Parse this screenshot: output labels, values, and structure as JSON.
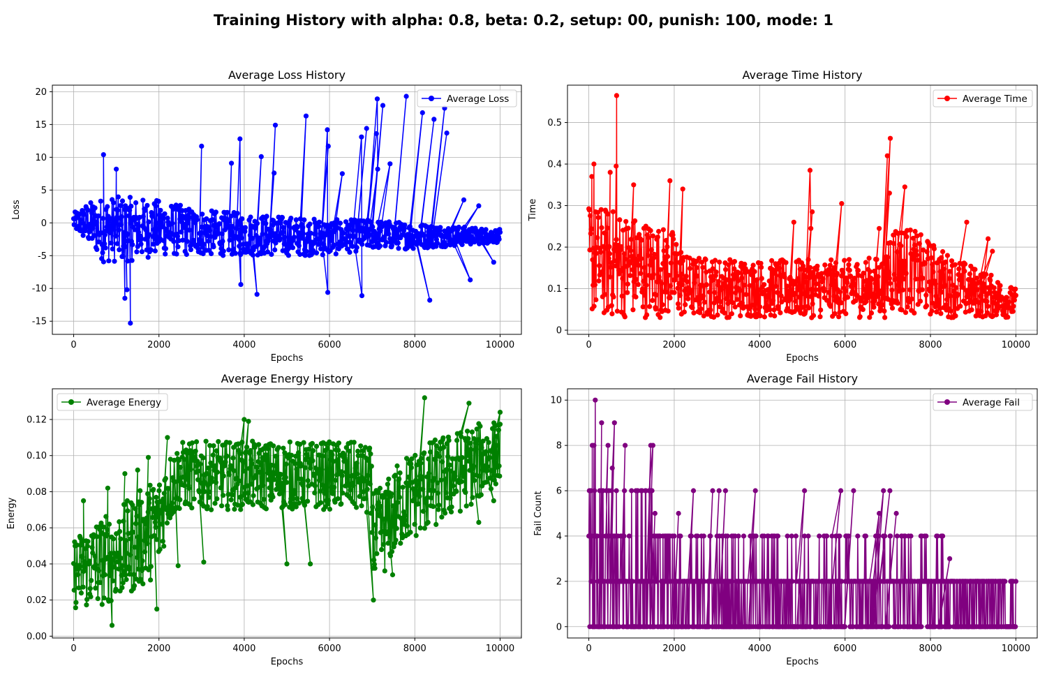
{
  "figure": {
    "title": "Training History with alpha: 0.8, beta: 0.2, setup: 00, punish: 100, mode: 1"
  },
  "chart_data": [
    {
      "id": "loss",
      "type": "line",
      "title": "Average Loss History",
      "xlabel": "Epochs",
      "ylabel": "Loss",
      "xlim": [
        -500,
        10500
      ],
      "ylim": [
        -17,
        21
      ],
      "xticks": [
        0,
        2000,
        4000,
        6000,
        8000,
        10000
      ],
      "yticks": [
        -15,
        -10,
        -5,
        0,
        5,
        10,
        15,
        20
      ],
      "grid": true,
      "legend": "upper right",
      "series": [
        {
          "name": "Average Loss",
          "color": "#0000ff",
          "marker": "circle",
          "band_x": [
            0,
            300,
            700,
            1200,
            2000,
            3000,
            4000,
            5000,
            6000,
            7000,
            8000,
            9000,
            10000
          ],
          "band_low": [
            -1,
            -3,
            -6,
            -6,
            -5,
            -5,
            -5,
            -5,
            -5,
            -4,
            -4,
            -3.5,
            -3
          ],
          "band_high": [
            1.5,
            3,
            4,
            4,
            3.5,
            2,
            1.5,
            1,
            0.5,
            0.5,
            0,
            -0.5,
            -1
          ],
          "peaks": [
            [
              700,
              10.4
            ],
            [
              1000,
              8.2
            ],
            [
              1330,
              -15.3
            ],
            [
              1200,
              -11.5
            ],
            [
              1250,
              -10.2
            ],
            [
              3000,
              11.7
            ],
            [
              3700,
              9.1
            ],
            [
              3900,
              12.8
            ],
            [
              3920,
              -9.4
            ],
            [
              4300,
              -10.9
            ],
            [
              4400,
              10.1
            ],
            [
              4700,
              7.6
            ],
            [
              4730,
              14.9
            ],
            [
              5450,
              16.3
            ],
            [
              5950,
              14.2
            ],
            [
              5970,
              11.7
            ],
            [
              5960,
              -10.6
            ],
            [
              6300,
              7.5
            ],
            [
              6750,
              13.1
            ],
            [
              6760,
              -11.1
            ],
            [
              6870,
              14.4
            ],
            [
              7100,
              13.6
            ],
            [
              7120,
              18.9
            ],
            [
              7130,
              8.2
            ],
            [
              7250,
              17.9
            ],
            [
              7420,
              9.0
            ],
            [
              7800,
              19.3
            ],
            [
              8180,
              16.8
            ],
            [
              8350,
              -11.8
            ],
            [
              8450,
              15.8
            ],
            [
              8700,
              17.5
            ],
            [
              8750,
              13.7
            ],
            [
              9150,
              3.5
            ],
            [
              9300,
              -8.7
            ],
            [
              9500,
              2.6
            ],
            [
              9850,
              -6.0
            ]
          ]
        }
      ]
    },
    {
      "id": "time",
      "type": "line",
      "title": "Average Time History",
      "xlabel": "Epochs",
      "ylabel": "Time",
      "xlim": [
        -500,
        10500
      ],
      "ylim": [
        -0.01,
        0.59
      ],
      "xticks": [
        0,
        2000,
        4000,
        6000,
        8000,
        10000
      ],
      "yticks": [
        0.0,
        0.1,
        0.2,
        0.3,
        0.4,
        0.5
      ],
      "grid": true,
      "legend": "upper right",
      "series": [
        {
          "name": "Average Time",
          "color": "#ff0000",
          "marker": "circle",
          "band_x": [
            0,
            300,
            1000,
            2000,
            2300,
            4000,
            6000,
            6990,
            7010,
            7500,
            8500,
            9500,
            10000
          ],
          "band_low": [
            0.04,
            0.03,
            0.03,
            0.03,
            0.03,
            0.03,
            0.03,
            0.03,
            0.04,
            0.04,
            0.03,
            0.03,
            0.03
          ],
          "band_high": [
            0.3,
            0.3,
            0.28,
            0.24,
            0.18,
            0.17,
            0.17,
            0.18,
            0.27,
            0.25,
            0.18,
            0.13,
            0.1
          ],
          "peaks": [
            [
              650,
              0.565
            ],
            [
              70,
              0.37
            ],
            [
              120,
              0.4
            ],
            [
              640,
              0.395
            ],
            [
              500,
              0.38
            ],
            [
              1050,
              0.35
            ],
            [
              1900,
              0.36
            ],
            [
              2200,
              0.34
            ],
            [
              4800,
              0.26
            ],
            [
              5180,
              0.385
            ],
            [
              5200,
              0.245
            ],
            [
              5230,
              0.285
            ],
            [
              5920,
              0.305
            ],
            [
              6800,
              0.245
            ],
            [
              6990,
              0.42
            ],
            [
              7060,
              0.462
            ],
            [
              7040,
              0.33
            ],
            [
              7400,
              0.345
            ],
            [
              8850,
              0.26
            ],
            [
              9350,
              0.22
            ],
            [
              9450,
              0.19
            ]
          ]
        }
      ]
    },
    {
      "id": "energy",
      "type": "line",
      "title": "Average Energy History",
      "xlabel": "Epochs",
      "ylabel": "Energy",
      "xlim": [
        -500,
        10500
      ],
      "ylim": [
        -0.001,
        0.137
      ],
      "xticks": [
        0,
        2000,
        4000,
        6000,
        8000,
        10000
      ],
      "yticks": [
        0.0,
        0.02,
        0.04,
        0.06,
        0.08,
        0.1,
        0.12
      ],
      "yticks_labels": [
        "0.00",
        "0.02",
        "0.04",
        "0.06",
        "0.08",
        "0.10",
        "0.12"
      ],
      "grid": true,
      "legend": "upper left",
      "series": [
        {
          "name": "Average Energy",
          "color": "#008000",
          "marker": "circle",
          "band_x": [
            0,
            500,
            1000,
            1500,
            2000,
            2200,
            2500,
            3500,
            5000,
            6500,
            6950,
            7050,
            7300,
            7700,
            8500,
            9500,
            10000
          ],
          "band_low": [
            0.015,
            0.015,
            0.02,
            0.025,
            0.035,
            0.06,
            0.07,
            0.07,
            0.07,
            0.07,
            0.065,
            0.025,
            0.035,
            0.05,
            0.06,
            0.075,
            0.085
          ],
          "band_high": [
            0.055,
            0.065,
            0.07,
            0.08,
            0.09,
            0.1,
            0.108,
            0.108,
            0.108,
            0.108,
            0.105,
            0.08,
            0.085,
            0.1,
            0.11,
            0.118,
            0.12
          ],
          "peaks": [
            [
              230,
              0.075
            ],
            [
              800,
              0.082
            ],
            [
              900,
              0.006
            ],
            [
              1200,
              0.09
            ],
            [
              1500,
              0.092
            ],
            [
              1750,
              0.099
            ],
            [
              1950,
              0.015
            ],
            [
              2200,
              0.11
            ],
            [
              2450,
              0.039
            ],
            [
              3050,
              0.041
            ],
            [
              4000,
              0.12
            ],
            [
              4100,
              0.119
            ],
            [
              5000,
              0.04
            ],
            [
              5550,
              0.04
            ],
            [
              7030,
              0.02
            ],
            [
              7480,
              0.034
            ],
            [
              8230,
              0.132
            ],
            [
              9270,
              0.129
            ],
            [
              9500,
              0.063
            ],
            [
              9850,
              0.075
            ],
            [
              10000,
              0.124
            ]
          ]
        }
      ]
    },
    {
      "id": "fail",
      "type": "line",
      "title": "Average Fail History",
      "xlabel": "Epochs",
      "ylabel": "Fail Count",
      "xlim": [
        -500,
        10500
      ],
      "ylim": [
        -0.5,
        10.5
      ],
      "xticks": [
        0,
        2000,
        4000,
        6000,
        8000,
        10000
      ],
      "yticks": [
        0,
        2,
        4,
        6,
        8,
        10
      ],
      "grid": true,
      "legend": "upper right",
      "series": [
        {
          "name": "Average Fail",
          "color": "#800080",
          "marker": "circle",
          "levels_note_values": [
            0,
            2,
            4,
            6,
            8,
            10
          ],
          "peaks": [
            [
              150,
              10
            ],
            [
              80,
              8
            ],
            [
              120,
              8
            ],
            [
              300,
              9
            ],
            [
              450,
              8
            ],
            [
              550,
              7
            ],
            [
              600,
              9
            ],
            [
              850,
              8
            ],
            [
              1450,
              8
            ],
            [
              1500,
              8
            ],
            [
              1550,
              5
            ],
            [
              2100,
              5
            ],
            [
              2450,
              6
            ],
            [
              2900,
              6
            ],
            [
              3050,
              6
            ],
            [
              3200,
              6
            ],
            [
              3900,
              6
            ],
            [
              5050,
              6
            ],
            [
              5900,
              6
            ],
            [
              6200,
              6
            ],
            [
              6800,
              5
            ],
            [
              6900,
              6
            ],
            [
              7050,
              6
            ],
            [
              7200,
              5
            ],
            [
              8450,
              3
            ]
          ]
        }
      ]
    }
  ]
}
